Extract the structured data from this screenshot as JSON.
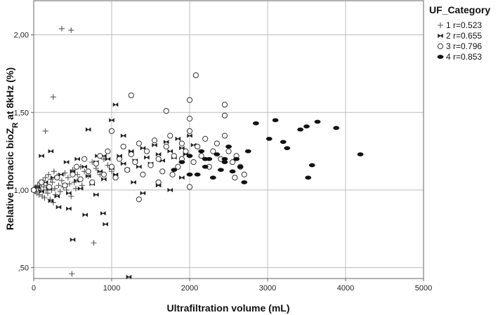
{
  "chart_data": {
    "type": "scatter",
    "title": "",
    "xlabel": "Ultrafiltration volume (mL)",
    "ylabel_prefix": "Relative thoracic bioZ",
    "ylabel_sub": "R",
    "ylabel_suffix": " at 8kHz (%)",
    "xlim": [
      0,
      5000
    ],
    "ylim": [
      0.43,
      2.22
    ],
    "x_ticks": [
      {
        "value": 0,
        "label": "0"
      },
      {
        "value": 1000,
        "label": "1000"
      },
      {
        "value": 2000,
        "label": "2000"
      },
      {
        "value": 3000,
        "label": "3000"
      },
      {
        "value": 4000,
        "label": "4000"
      },
      {
        "value": 5000,
        "label": "5000"
      }
    ],
    "y_ticks": [
      {
        "value": 0.5,
        "label": ",50"
      },
      {
        "value": 1.0,
        "label": "1,00"
      },
      {
        "value": 1.5,
        "label": "1,50"
      },
      {
        "value": 2.0,
        "label": "2,00"
      }
    ],
    "grid": true,
    "legend_title": "UF_Category",
    "legend_position": "top-right",
    "series": [
      {
        "name": "1",
        "label": "1 r=0.523",
        "marker": "plus",
        "points": [
          [
            0,
            1.0
          ],
          [
            10,
            1.01
          ],
          [
            20,
            0.99
          ],
          [
            30,
            1.02
          ],
          [
            40,
            0.98
          ],
          [
            50,
            1.03
          ],
          [
            60,
            1.01
          ],
          [
            70,
            0.97
          ],
          [
            80,
            1.05
          ],
          [
            90,
            1.0
          ],
          [
            100,
            1.04
          ],
          [
            110,
            0.96
          ],
          [
            120,
            1.06
          ],
          [
            130,
            1.02
          ],
          [
            140,
            0.95
          ],
          [
            150,
            1.08
          ],
          [
            160,
            1.0
          ],
          [
            170,
            1.03
          ],
          [
            180,
            0.98
          ],
          [
            190,
            1.1
          ],
          [
            200,
            1.02
          ],
          [
            210,
            0.94
          ],
          [
            220,
            1.07
          ],
          [
            230,
            1.0
          ],
          [
            240,
            1.05
          ],
          [
            250,
            0.92
          ],
          [
            260,
            1.12
          ],
          [
            270,
            1.01
          ],
          [
            280,
            0.97
          ],
          [
            300,
            1.09
          ],
          [
            320,
            1.03
          ],
          [
            340,
            0.99
          ],
          [
            360,
            1.06
          ],
          [
            380,
            1.02
          ],
          [
            400,
            1.11
          ],
          [
            420,
            1.0
          ],
          [
            440,
            1.08
          ],
          [
            460,
            1.04
          ],
          [
            480,
            0.96
          ],
          [
            500,
            1.13
          ],
          [
            520,
            1.05
          ],
          [
            540,
            1.01
          ],
          [
            560,
            1.1
          ],
          [
            580,
            1.07
          ],
          [
            600,
            1.15
          ],
          [
            620,
            1.03
          ],
          [
            650,
            1.12
          ],
          [
            700,
            1.09
          ],
          [
            750,
            1.18
          ],
          [
            800,
            1.14
          ],
          [
            850,
            1.1
          ],
          [
            900,
            1.2
          ],
          [
            950,
            1.16
          ],
          [
            1000,
            1.12
          ],
          [
            150,
            1.38
          ],
          [
            250,
            1.6
          ],
          [
            360,
            2.04
          ],
          [
            480,
            2.03
          ],
          [
            770,
            0.66
          ],
          [
            490,
            0.46
          ]
        ]
      },
      {
        "name": "2",
        "label": "2 r=0.655",
        "marker": "bowtie",
        "points": [
          [
            0,
            1.0
          ],
          [
            50,
            1.02
          ],
          [
            100,
            0.99
          ],
          [
            150,
            1.05
          ],
          [
            200,
            1.01
          ],
          [
            250,
            1.08
          ],
          [
            300,
            0.96
          ],
          [
            350,
            1.1
          ],
          [
            400,
            1.03
          ],
          [
            450,
            0.98
          ],
          [
            500,
            1.12
          ],
          [
            550,
            1.06
          ],
          [
            600,
            1.01
          ],
          [
            650,
            1.15
          ],
          [
            700,
            1.09
          ],
          [
            750,
            1.04
          ],
          [
            800,
            1.18
          ],
          [
            850,
            1.12
          ],
          [
            900,
            1.07
          ],
          [
            950,
            1.2
          ],
          [
            1000,
            1.14
          ],
          [
            1050,
            1.1
          ],
          [
            1100,
            1.22
          ],
          [
            1150,
            1.17
          ],
          [
            1200,
            1.13
          ],
          [
            1250,
            1.25
          ],
          [
            1300,
            1.19
          ],
          [
            1350,
            1.15
          ],
          [
            1400,
            1.27
          ],
          [
            1450,
            1.21
          ],
          [
            1500,
            1.17
          ],
          [
            1550,
            1.29
          ],
          [
            1600,
            1.23
          ],
          [
            1650,
            1.19
          ],
          [
            1700,
            1.31
          ],
          [
            1750,
            1.25
          ],
          [
            1800,
            1.21
          ],
          [
            1850,
            1.33
          ],
          [
            1900,
            1.27
          ],
          [
            1950,
            1.23
          ],
          [
            2000,
            1.35
          ],
          [
            2050,
            1.29
          ],
          [
            100,
            1.22
          ],
          [
            220,
            1.25
          ],
          [
            420,
            1.18
          ],
          [
            560,
            1.2
          ],
          [
            700,
            1.39
          ],
          [
            820,
            1.22
          ],
          [
            1000,
            1.45
          ],
          [
            1050,
            1.55
          ],
          [
            1150,
            1.35
          ],
          [
            1280,
            1.05
          ],
          [
            1400,
            0.98
          ],
          [
            1600,
            1.03
          ],
          [
            1750,
            1.0
          ],
          [
            1900,
            1.08
          ],
          [
            220,
            0.93
          ],
          [
            320,
            0.89
          ],
          [
            450,
            0.88
          ],
          [
            660,
            0.84
          ],
          [
            800,
            0.97
          ],
          [
            920,
            0.78
          ],
          [
            890,
            0.85
          ],
          [
            500,
            0.68
          ],
          [
            1220,
            0.44
          ],
          [
            900,
            1.22
          ]
        ]
      },
      {
        "name": "3",
        "label": "3 r=0.796",
        "marker": "circle",
        "points": [
          [
            0,
            1.0
          ],
          [
            100,
            1.05
          ],
          [
            200,
            1.02
          ],
          [
            300,
            1.08
          ],
          [
            400,
            1.03
          ],
          [
            500,
            1.1
          ],
          [
            550,
            1.15
          ],
          [
            600,
            1.07
          ],
          [
            650,
            1.2
          ],
          [
            700,
            1.12
          ],
          [
            750,
            1.05
          ],
          [
            800,
            1.17
          ],
          [
            850,
            1.22
          ],
          [
            900,
            1.1
          ],
          [
            950,
            1.25
          ],
          [
            1000,
            1.15
          ],
          [
            1050,
            1.08
          ],
          [
            1100,
            1.2
          ],
          [
            1150,
            1.28
          ],
          [
            1200,
            1.13
          ],
          [
            1250,
            1.23
          ],
          [
            1300,
            1.18
          ],
          [
            1350,
            1.3
          ],
          [
            1400,
            1.1
          ],
          [
            1450,
            1.25
          ],
          [
            1500,
            1.16
          ],
          [
            1550,
            1.32
          ],
          [
            1600,
            1.2
          ],
          [
            1650,
            1.12
          ],
          [
            1700,
            1.28
          ],
          [
            1750,
            1.35
          ],
          [
            1800,
            1.22
          ],
          [
            1850,
            1.15
          ],
          [
            1900,
            1.3
          ],
          [
            1950,
            1.25
          ],
          [
            2000,
            1.38
          ],
          [
            2050,
            1.18
          ],
          [
            2100,
            1.28
          ],
          [
            2150,
            1.22
          ],
          [
            2200,
            1.33
          ],
          [
            2250,
            1.15
          ],
          [
            2300,
            1.25
          ],
          [
            2350,
            1.3
          ],
          [
            2400,
            1.2
          ],
          [
            2450,
            1.35
          ],
          [
            2500,
            1.25
          ],
          [
            2550,
            1.18
          ],
          [
            2600,
            1.22
          ],
          [
            2650,
            1.15
          ],
          [
            2700,
            1.1
          ],
          [
            1000,
            1.38
          ],
          [
            1250,
            1.61
          ],
          [
            1700,
            1.51
          ],
          [
            2000,
            1.58
          ],
          [
            2080,
            1.74
          ],
          [
            2000,
            1.46
          ],
          [
            2450,
            1.55
          ],
          [
            2450,
            1.48
          ],
          [
            1350,
            0.94
          ],
          [
            2000,
            1.02
          ],
          [
            2580,
            1.08
          ],
          [
            1600,
            1.05
          ],
          [
            1780,
            1.1
          ],
          [
            1900,
            1.2
          ]
        ]
      },
      {
        "name": "4",
        "label": "4 r=0.853",
        "marker": "filled-ellipse",
        "points": [
          [
            1800,
            1.13
          ],
          [
            1900,
            1.18
          ],
          [
            2000,
            1.22
          ],
          [
            2100,
            1.1
          ],
          [
            2150,
            1.25
          ],
          [
            2200,
            1.15
          ],
          [
            2250,
            1.2
          ],
          [
            2300,
            1.08
          ],
          [
            2350,
            1.23
          ],
          [
            2400,
            1.13
          ],
          [
            2450,
            1.18
          ],
          [
            2500,
            1.28
          ],
          [
            2550,
            1.12
          ],
          [
            2600,
            1.2
          ],
          [
            2650,
            1.15
          ],
          [
            2700,
            1.05
          ],
          [
            2750,
            1.25
          ],
          [
            2850,
            1.43
          ],
          [
            3020,
            1.33
          ],
          [
            3100,
            1.45
          ],
          [
            3200,
            1.31
          ],
          [
            3250,
            1.27
          ],
          [
            3420,
            1.39
          ],
          [
            3500,
            1.41
          ],
          [
            3520,
            1.08
          ],
          [
            3570,
            1.16
          ],
          [
            3640,
            1.44
          ],
          [
            3880,
            1.4
          ],
          [
            4190,
            1.23
          ],
          [
            2450,
            1.2
          ],
          [
            2200,
            1.2
          ],
          [
            2000,
            1.1
          ]
        ]
      }
    ]
  }
}
